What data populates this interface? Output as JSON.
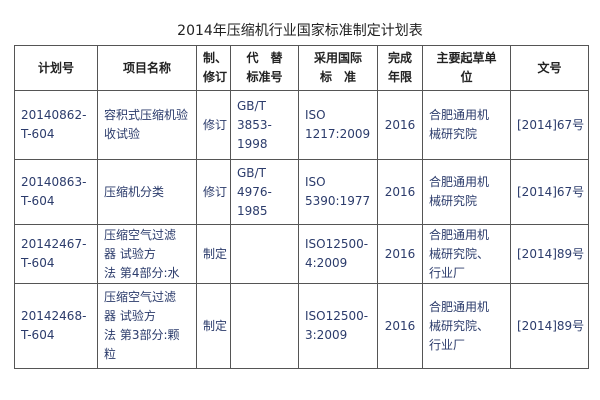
{
  "title": "2014年压缩机行业国家标准制定计划表",
  "table": {
    "header": [
      [
        "计划号"
      ],
      [
        "项目名称"
      ],
      [
        "制、",
        "修订"
      ],
      [
        "代　替",
        "标准号"
      ],
      [
        "采用国际",
        "标　准"
      ],
      [
        "完成",
        "年限"
      ],
      [
        "主要起草单",
        "位"
      ],
      [
        "文号"
      ]
    ],
    "rows": [
      [
        [
          "20140862-",
          "T-604"
        ],
        [
          "容积式压缩机验",
          "收试验"
        ],
        [
          "修订"
        ],
        [
          "GB/T",
          "3853-",
          "1998"
        ],
        [
          "ISO",
          "1217:2009"
        ],
        [
          "2016"
        ],
        [
          "合肥通用机",
          "械研究院"
        ],
        [
          "[2014]67号"
        ]
      ],
      [
        [
          "20140863-",
          "T-604"
        ],
        [
          "压缩机分类"
        ],
        [
          "修订"
        ],
        [
          "GB/T",
          "4976-",
          "1985"
        ],
        [
          "ISO",
          "5390:1977"
        ],
        [
          "2016"
        ],
        [
          "合肥通用机",
          "械研究院"
        ],
        [
          "[2014]67号"
        ]
      ],
      [
        [
          "20142467-",
          "T-604"
        ],
        [
          "压缩空气过滤",
          "器 试验方",
          "法 第4部分:水"
        ],
        [
          "制定"
        ],
        [],
        [
          "ISO12500-",
          "4:2009"
        ],
        [
          "2016"
        ],
        [
          "合肥通用机",
          "械研究院、",
          "行业厂"
        ],
        [
          "[2014]89号"
        ]
      ],
      [
        [
          "20142468-",
          "T-604"
        ],
        [
          "压缩空气过滤",
          "器 试验方",
          "法 第3部分:颗",
          "粒"
        ],
        [
          "制定"
        ],
        [],
        [
          "ISO12500-",
          "3:2009"
        ],
        [
          "2016"
        ],
        [
          "合肥通用机",
          "械研究院、",
          "行业厂"
        ],
        [
          "[2014]89号"
        ]
      ]
    ]
  }
}
